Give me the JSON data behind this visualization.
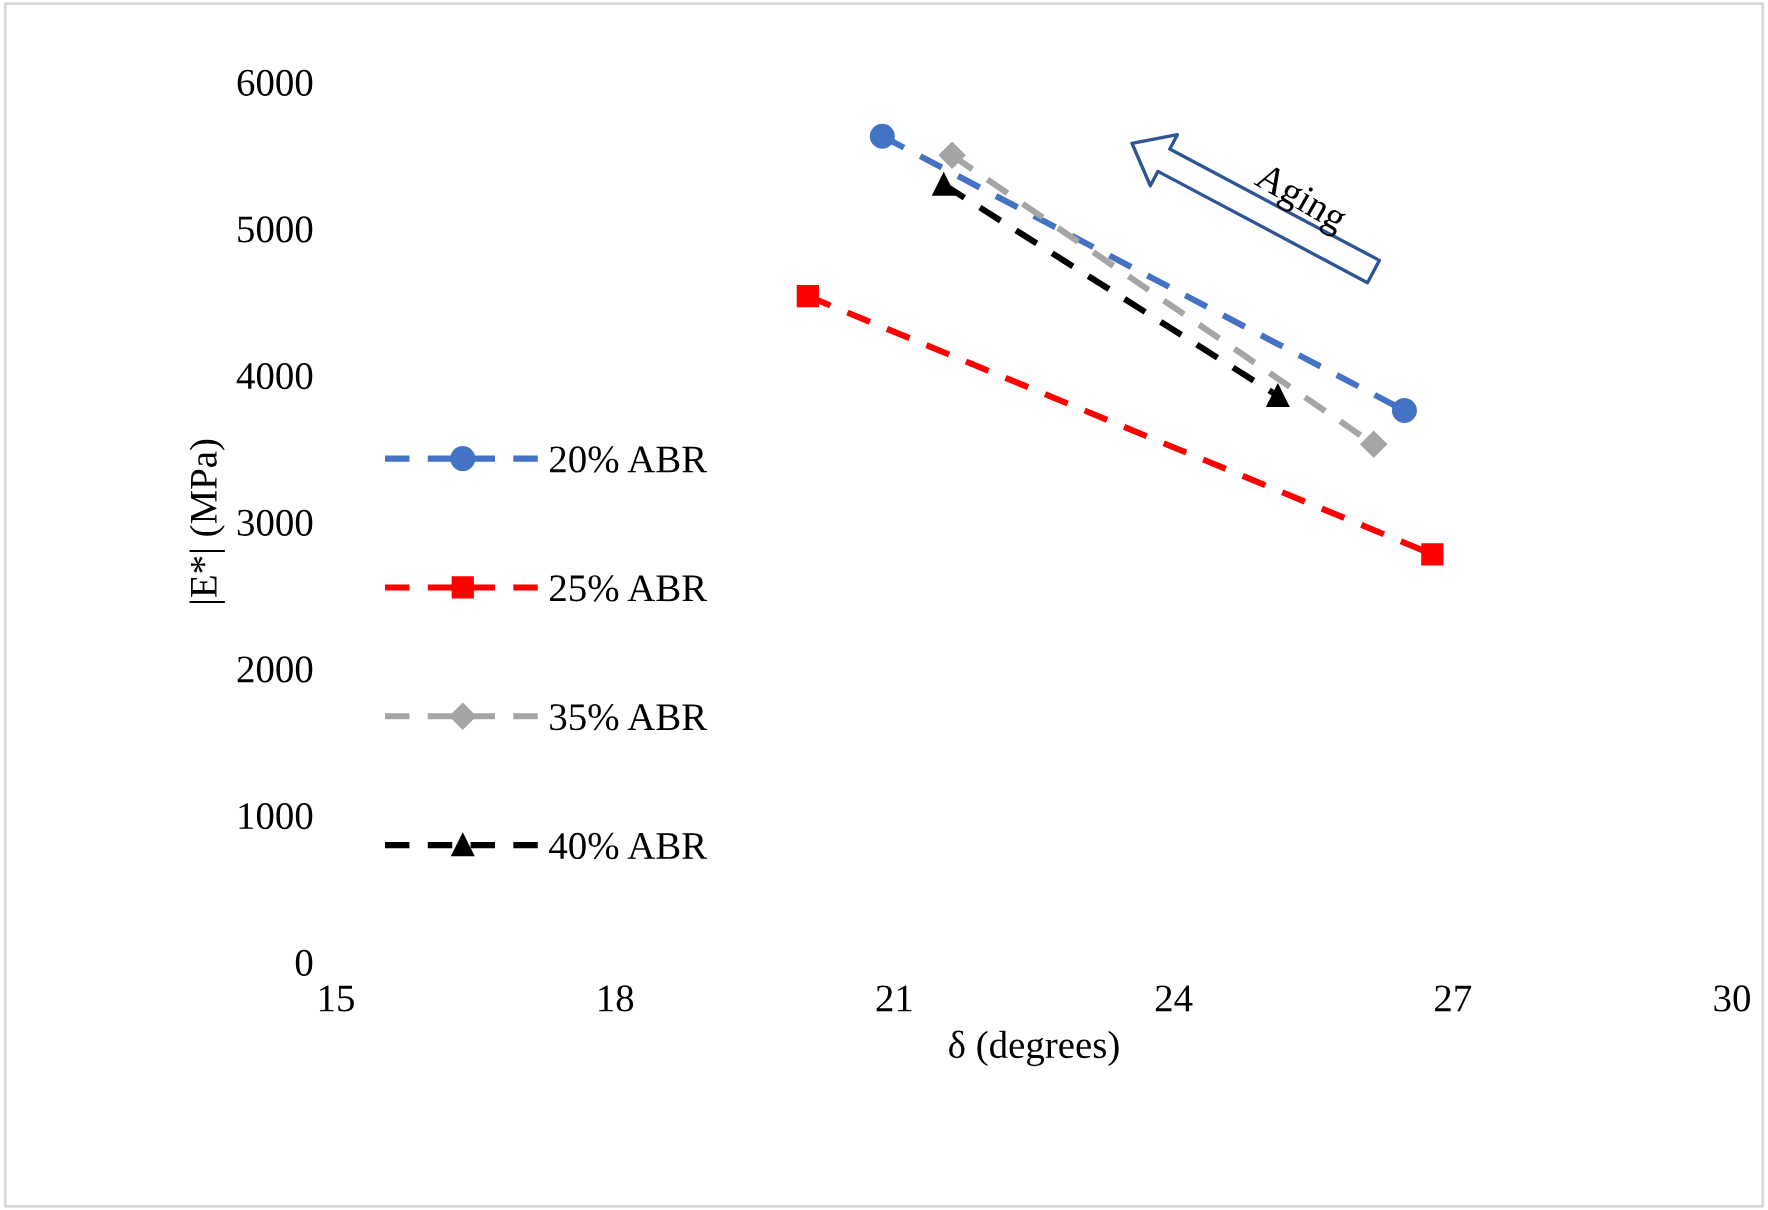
{
  "chart_data": {
    "type": "line",
    "xlabel": "δ (degrees)",
    "ylabel": "|E*| (MPa)",
    "xlim": [
      15,
      30
    ],
    "xticks": [
      15,
      18,
      21,
      24,
      27,
      30
    ],
    "ylim": [
      0,
      6000
    ],
    "yticks": [
      0,
      1000,
      2000,
      3000,
      4000,
      5000,
      6000
    ],
    "grid": false,
    "legend": "left",
    "line_style": "dashed",
    "series": [
      {
        "name": "20% ABR",
        "color": "#4472c4",
        "marker": "circle",
        "x": [
          20.87,
          26.48
        ],
        "values": [
          5630,
          3760
        ]
      },
      {
        "name": "25% ABR",
        "color": "#ff0000",
        "marker": "square",
        "x": [
          20.07,
          26.78
        ],
        "values": [
          4540,
          2780
        ]
      },
      {
        "name": "35% ABR",
        "color": "#a5a5a5",
        "marker": "diamond",
        "x": [
          21.62,
          26.15
        ],
        "values": [
          5500,
          3530
        ]
      },
      {
        "name": "40% ABR",
        "color": "#000000",
        "marker": "triangle",
        "x": [
          21.53,
          25.12
        ],
        "values": [
          5300,
          3860
        ]
      }
    ],
    "annotations": [
      "Aging"
    ]
  }
}
